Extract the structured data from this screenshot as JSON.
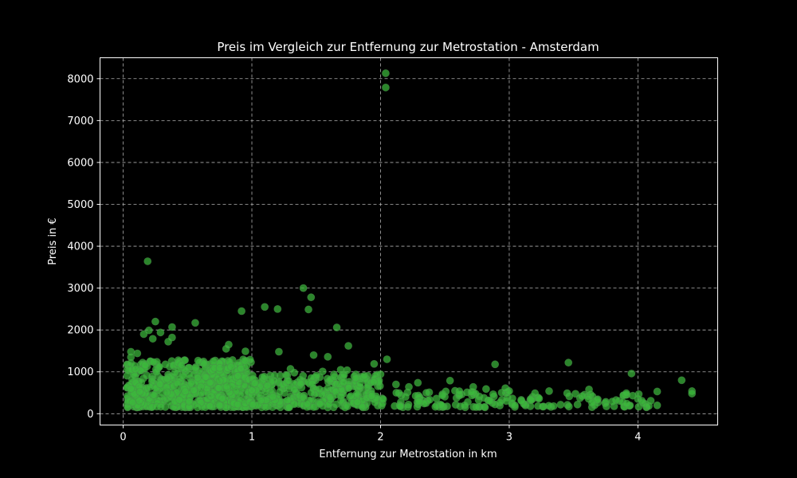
{
  "chart_data": {
    "type": "scatter",
    "title": "Preis im Vergleich zur Entfernung zur Metrostation - Amsterdam",
    "xlabel": "Entfernung zur Metrostation in km",
    "ylabel": "Preis in €",
    "xlim": [
      -0.18,
      4.62
    ],
    "ylim": [
      -270,
      8500
    ],
    "xticks": [
      0,
      1,
      2,
      3,
      4
    ],
    "yticks": [
      0,
      1000,
      2000,
      3000,
      4000,
      5000,
      6000,
      7000,
      8000
    ],
    "grid": true,
    "point_color": "#3cb83c",
    "background": "#000000",
    "outliers": [
      {
        "x": 2.04,
        "y": 8130
      },
      {
        "x": 2.04,
        "y": 7790
      },
      {
        "x": 0.19,
        "y": 3640
      },
      {
        "x": 1.4,
        "y": 3000
      },
      {
        "x": 1.46,
        "y": 2780
      },
      {
        "x": 1.1,
        "y": 2550
      },
      {
        "x": 1.2,
        "y": 2500
      },
      {
        "x": 1.44,
        "y": 2490
      },
      {
        "x": 0.92,
        "y": 2450
      },
      {
        "x": 0.25,
        "y": 2200
      },
      {
        "x": 0.56,
        "y": 2170
      },
      {
        "x": 1.66,
        "y": 2060
      },
      {
        "x": 0.38,
        "y": 2070
      },
      {
        "x": 0.2,
        "y": 1990
      },
      {
        "x": 0.29,
        "y": 1940
      },
      {
        "x": 0.16,
        "y": 1900
      },
      {
        "x": 0.38,
        "y": 1820
      },
      {
        "x": 0.23,
        "y": 1790
      },
      {
        "x": 0.82,
        "y": 1650
      },
      {
        "x": 1.75,
        "y": 1620
      },
      {
        "x": 0.35,
        "y": 1720
      },
      {
        "x": 0.8,
        "y": 1550
      },
      {
        "x": 1.21,
        "y": 1480
      },
      {
        "x": 0.95,
        "y": 1490
      },
      {
        "x": 1.48,
        "y": 1400
      },
      {
        "x": 1.59,
        "y": 1360
      },
      {
        "x": 0.06,
        "y": 1480
      },
      {
        "x": 0.11,
        "y": 1440
      },
      {
        "x": 0.06,
        "y": 1350
      },
      {
        "x": 1.95,
        "y": 1190
      },
      {
        "x": 2.05,
        "y": 1300
      },
      {
        "x": 2.89,
        "y": 1180
      },
      {
        "x": 3.46,
        "y": 1220
      },
      {
        "x": 3.95,
        "y": 960
      },
      {
        "x": 4.34,
        "y": 800
      },
      {
        "x": 4.42,
        "y": 540
      },
      {
        "x": 4.42,
        "y": 480
      },
      {
        "x": 4.15,
        "y": 530
      },
      {
        "x": 4.15,
        "y": 200
      },
      {
        "x": 4.1,
        "y": 310
      },
      {
        "x": 4.03,
        "y": 310
      },
      {
        "x": 3.96,
        "y": 430
      },
      {
        "x": 3.91,
        "y": 490
      },
      {
        "x": 3.62,
        "y": 580
      },
      {
        "x": 3.45,
        "y": 490
      },
      {
        "x": 3.31,
        "y": 540
      },
      {
        "x": 3.2,
        "y": 490
      },
      {
        "x": 3.0,
        "y": 540
      },
      {
        "x": 2.97,
        "y": 610
      },
      {
        "x": 2.82,
        "y": 590
      },
      {
        "x": 2.72,
        "y": 640
      },
      {
        "x": 2.54,
        "y": 790
      },
      {
        "x": 2.29,
        "y": 740
      },
      {
        "x": 2.22,
        "y": 640
      },
      {
        "x": 2.12,
        "y": 700
      },
      {
        "x": 1.69,
        "y": 1050
      },
      {
        "x": 1.74,
        "y": 1040
      },
      {
        "x": 1.55,
        "y": 1010
      },
      {
        "x": 1.3,
        "y": 1070
      },
      {
        "x": 1.33,
        "y": 980
      }
    ],
    "clusters": [
      {
        "x_min": 0.03,
        "x_max": 1.0,
        "y_min": 150,
        "y_max": 1300,
        "count": 600
      },
      {
        "x_min": 1.0,
        "x_max": 2.0,
        "y_min": 150,
        "y_max": 950,
        "count": 320
      },
      {
        "x_min": 2.0,
        "x_max": 3.0,
        "y_min": 150,
        "y_max": 560,
        "count": 90
      },
      {
        "x_min": 3.0,
        "x_max": 4.1,
        "y_min": 150,
        "y_max": 480,
        "count": 70
      }
    ]
  }
}
